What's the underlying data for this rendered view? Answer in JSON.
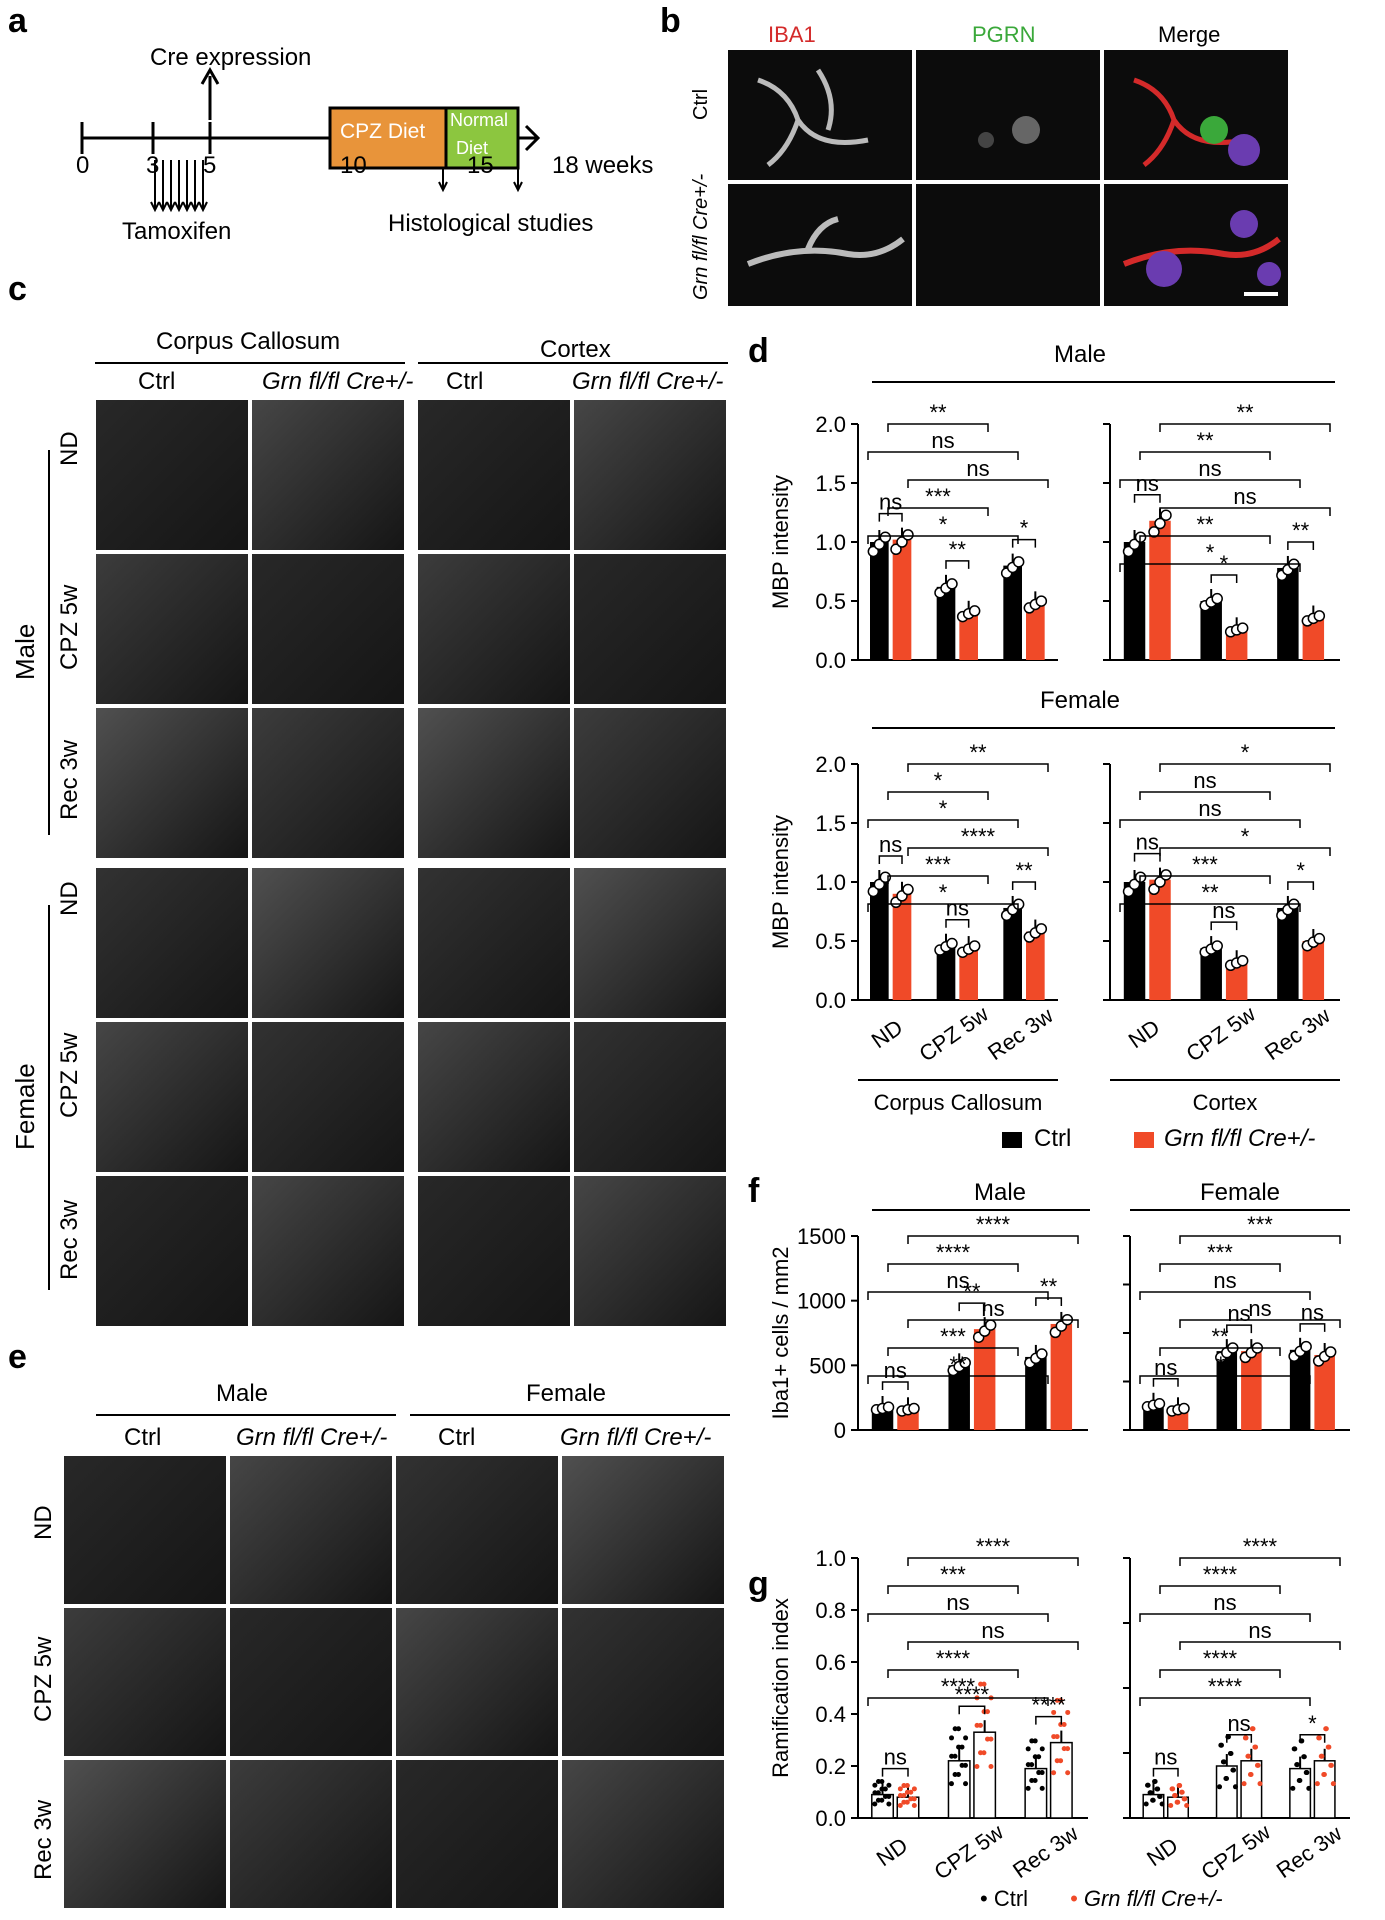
{
  "panels": {
    "a": "a",
    "b": "b",
    "c": "c",
    "d": "d",
    "e": "e",
    "f": "f",
    "g": "g"
  },
  "a": {
    "cre_expression": "Cre expression",
    "ticks": [
      "0",
      "3",
      "5",
      "10",
      "15",
      "18 weeks"
    ],
    "tamoxifen": "Tamoxifen",
    "cpz_diet": "CPZ Diet",
    "normal_diet_line1": "Normal",
    "normal_diet_line2": "Diet",
    "histological": "Histological studies"
  },
  "b": {
    "cols": [
      "IBA1",
      "PGRN",
      "Merge"
    ],
    "rows": [
      "Ctrl",
      "Grn fl/fl Cre+/-"
    ],
    "col_colors": [
      "#d42a2a",
      "#3aa83a",
      "#000000"
    ]
  },
  "c": {
    "region_cc": "Corpus Callosum",
    "region_ctx": "Cortex",
    "cols": [
      "Ctrl",
      "Grn fl/fl Cre+/-",
      "Ctrl",
      "Grn fl/fl Cre+/-"
    ],
    "sex_male": "Male",
    "sex_female": "Female",
    "rows": [
      "ND",
      "CPZ 5w",
      "Rec 3w"
    ]
  },
  "e": {
    "sex_male": "Male",
    "sex_female": "Female",
    "cols": [
      "Ctrl",
      "Grn fl/fl Cre+/-",
      "Ctrl",
      "Grn fl/fl Cre+/-"
    ],
    "rows": [
      "ND",
      "CPZ 5w",
      "Rec 3w"
    ]
  },
  "colors": {
    "ctrl": "#000000",
    "grn": "#f04a28"
  },
  "legend": {
    "ctrl": "Ctrl",
    "grn": "Grn fl/fl Cre+/-"
  },
  "chart_data": [
    {
      "id": "d-male-cc",
      "type": "bar",
      "group": "Male",
      "ylabel": "MBP intensity",
      "ylim": [
        0,
        2.0
      ],
      "yticks": [
        "0.0",
        "0.5",
        "1.0",
        "1.5",
        "2.0"
      ],
      "categories": [
        "ND",
        "CPZ 5w",
        "Rec 3w"
      ],
      "series": [
        {
          "name": "Ctrl",
          "values": [
            1.0,
            0.62,
            0.8
          ]
        },
        {
          "name": "Grn fl/fl Cre+/-",
          "values": [
            1.02,
            0.4,
            0.48
          ]
        }
      ],
      "sig": [
        "ns",
        "**",
        "*",
        "*",
        "***",
        "ns",
        "ns",
        "**"
      ]
    },
    {
      "id": "d-male-ctx",
      "type": "bar",
      "group": "Male",
      "ylim": [
        0,
        2.0
      ],
      "categories": [
        "ND",
        "CPZ 5w",
        "Rec 3w"
      ],
      "series": [
        {
          "name": "Ctrl",
          "values": [
            1.0,
            0.5,
            0.78
          ]
        },
        {
          "name": "Grn fl/fl Cre+/-",
          "values": [
            1.18,
            0.26,
            0.36
          ]
        }
      ],
      "sig": [
        "ns",
        "*",
        "**",
        "*",
        "**",
        "ns",
        "ns",
        "**",
        "**"
      ]
    },
    {
      "id": "d-female-cc",
      "type": "bar",
      "group": "Female",
      "ylabel": "MBP intensity",
      "xlabel": "Corpus Callosum",
      "ylim": [
        0,
        2.0
      ],
      "yticks": [
        "0.0",
        "0.5",
        "1.0",
        "1.5",
        "2.0"
      ],
      "categories": [
        "ND",
        "CPZ 5w",
        "Rec 3w"
      ],
      "series": [
        {
          "name": "Ctrl",
          "values": [
            1.0,
            0.46,
            0.78
          ]
        },
        {
          "name": "Grn fl/fl Cre+/-",
          "values": [
            0.9,
            0.44,
            0.58
          ]
        }
      ],
      "sig": [
        "ns",
        "ns",
        "**",
        "*",
        "***",
        "****",
        "*",
        "*",
        "**"
      ]
    },
    {
      "id": "d-female-ctx",
      "type": "bar",
      "group": "Female",
      "xlabel": "Cortex",
      "ylim": [
        0,
        2.0
      ],
      "categories": [
        "ND",
        "CPZ 5w",
        "Rec 3w"
      ],
      "series": [
        {
          "name": "Ctrl",
          "values": [
            1.0,
            0.44,
            0.78
          ]
        },
        {
          "name": "Grn fl/fl Cre+/-",
          "values": [
            1.02,
            0.32,
            0.5
          ]
        }
      ],
      "sig": [
        "ns",
        "ns",
        "*",
        "**",
        "***",
        "*",
        "ns",
        "ns",
        "*"
      ]
    },
    {
      "id": "f-male",
      "type": "bar",
      "group": "Male",
      "ylabel": "Iba1+ cells / mm2",
      "ylim": [
        0,
        1500
      ],
      "yticks": [
        "0",
        "500",
        "1000",
        "1500"
      ],
      "categories": [
        "ND",
        "CPZ 5w",
        "Rec 3w"
      ],
      "series": [
        {
          "name": "Ctrl",
          "values": [
            170,
            500,
            565
          ]
        },
        {
          "name": "Grn fl/fl Cre+/-",
          "values": [
            160,
            780,
            820
          ]
        }
      ],
      "sig": [
        "ns",
        "**",
        "**",
        "**",
        "***",
        "ns",
        "ns",
        "****",
        "****"
      ]
    },
    {
      "id": "f-female",
      "type": "bar",
      "group": "Female",
      "ylim": [
        0,
        1500
      ],
      "categories": [
        "ND",
        "CPZ 5w",
        "Rec 3w"
      ],
      "series": [
        {
          "name": "Ctrl",
          "values": [
            195,
            610,
            620
          ]
        },
        {
          "name": "Grn fl/fl Cre+/-",
          "values": [
            160,
            610,
            580
          ]
        }
      ],
      "sig": [
        "ns",
        "ns",
        "ns",
        "**",
        "**",
        "ns",
        "ns",
        "***",
        "***"
      ]
    },
    {
      "id": "g-male",
      "type": "bar",
      "ylabel": "Ramification index",
      "ylim": [
        0,
        1.0
      ],
      "yticks": [
        "0.0",
        "0.2",
        "0.4",
        "0.6",
        "0.8",
        "1.0"
      ],
      "categories": [
        "ND",
        "CPZ 5w",
        "Rec 3w"
      ],
      "series": [
        {
          "name": "Ctrl",
          "values": [
            0.09,
            0.22,
            0.19
          ]
        },
        {
          "name": "Grn fl/fl Cre+/-",
          "values": [
            0.08,
            0.33,
            0.29
          ]
        }
      ],
      "sig": [
        "ns",
        "****",
        "****",
        "****",
        "****",
        "ns",
        "ns",
        "***",
        "****"
      ]
    },
    {
      "id": "g-female",
      "type": "bar",
      "ylim": [
        0,
        1.0
      ],
      "categories": [
        "ND",
        "CPZ 5w",
        "Rec 3w"
      ],
      "series": [
        {
          "name": "Ctrl",
          "values": [
            0.09,
            0.2,
            0.19
          ]
        },
        {
          "name": "Grn fl/fl Cre+/-",
          "values": [
            0.08,
            0.22,
            0.22
          ]
        }
      ],
      "sig": [
        "ns",
        "ns",
        "*",
        "****",
        "****",
        "ns",
        "ns",
        "****",
        "****"
      ]
    }
  ]
}
